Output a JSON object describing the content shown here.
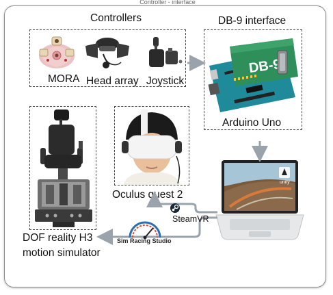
{
  "header_partial": "Controller - interface",
  "controllers": {
    "title": "Controllers",
    "items": [
      "MORA",
      "Head array",
      "Joystick"
    ]
  },
  "interface": {
    "title": "DB-9 interface",
    "board_label": "Arduino Uno",
    "shield_text": "DB-9"
  },
  "headset": {
    "label": "Oculus quest 2"
  },
  "simulator": {
    "label_line1": "DOF reality H3",
    "label_line2": "motion simulator"
  },
  "software": {
    "steamvr": "SteamVR",
    "simracing": "Sim Racing Studio",
    "unity": "unity"
  },
  "colors": {
    "arrow": "#9aa3ab",
    "board_green": "#2f8f5a",
    "arduino_teal": "#1f8a9a"
  }
}
